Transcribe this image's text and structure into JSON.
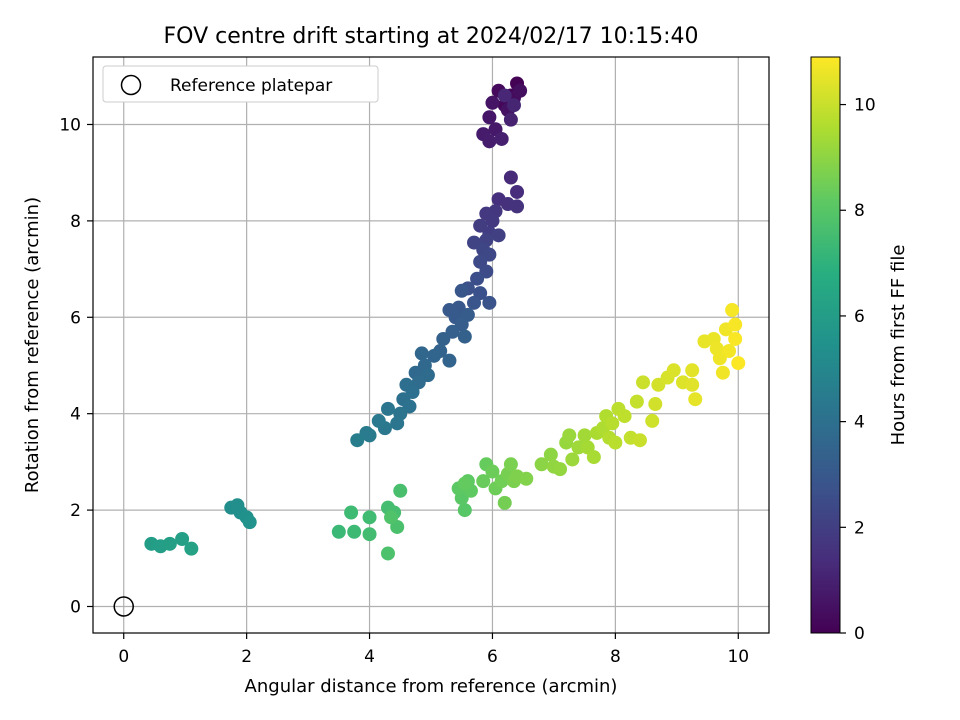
{
  "chart_data": {
    "type": "scatter",
    "title": "FOV centre drift starting at 2024/02/17 10:15:40",
    "xlabel": "Angular distance from reference (arcmin)",
    "ylabel": "Rotation from reference (arcmin)",
    "xlim": [
      -0.5,
      10.5
    ],
    "ylim": [
      -0.55,
      11.4
    ],
    "xticks": [
      0,
      2,
      4,
      6,
      8,
      10
    ],
    "yticks": [
      0,
      2,
      4,
      6,
      8,
      10
    ],
    "grid": true,
    "legend": {
      "location": "top-left",
      "entries": [
        "Reference platepar"
      ]
    },
    "reference_point": {
      "x": 0,
      "y": 0,
      "label": "Reference platepar"
    },
    "colorbar": {
      "label": "Hours from first FF file",
      "colormap": "viridis",
      "range": [
        0,
        10.9
      ],
      "ticks": [
        0,
        2,
        4,
        6,
        8,
        10
      ]
    },
    "series": [
      {
        "points": [
          [
            6.4,
            10.85
          ],
          [
            6.3,
            10.6
          ],
          [
            6.2,
            10.4
          ],
          [
            6.1,
            10.7
          ],
          [
            6.35,
            10.55
          ],
          [
            6.45,
            10.7
          ],
          [
            6.25,
            10.3
          ],
          [
            6.0,
            10.45
          ],
          [
            5.95,
            10.15
          ],
          [
            6.05,
            9.9
          ],
          [
            5.85,
            9.8
          ],
          [
            5.95,
            9.65
          ],
          [
            6.15,
            9.7
          ],
          [
            6.3,
            10.1
          ],
          [
            6.35,
            10.4
          ],
          [
            6.2,
            10.6
          ],
          [
            6.3,
            8.9
          ],
          [
            6.4,
            8.6
          ],
          [
            6.1,
            8.45
          ],
          [
            6.25,
            8.35
          ],
          [
            6.4,
            8.3
          ],
          [
            6.05,
            8.2
          ],
          [
            5.9,
            8.15
          ],
          [
            6.0,
            8.0
          ],
          [
            5.8,
            7.9
          ],
          [
            5.95,
            7.75
          ],
          [
            6.1,
            7.7
          ],
          [
            5.9,
            7.6
          ],
          [
            5.7,
            7.55
          ],
          [
            5.85,
            7.4
          ],
          [
            5.95,
            7.3
          ],
          [
            5.8,
            7.15
          ],
          [
            5.9,
            6.95
          ],
          [
            5.75,
            6.8
          ],
          [
            5.6,
            6.6
          ],
          [
            5.8,
            6.5
          ],
          [
            5.95,
            6.3
          ],
          [
            5.7,
            6.3
          ],
          [
            5.5,
            6.55
          ],
          [
            5.45,
            6.2
          ],
          [
            5.3,
            6.15
          ],
          [
            5.4,
            6.0
          ],
          [
            5.6,
            6.05
          ],
          [
            5.5,
            5.85
          ],
          [
            5.35,
            5.7
          ],
          [
            5.55,
            5.6
          ],
          [
            5.2,
            5.55
          ],
          [
            5.15,
            5.3
          ],
          [
            5.3,
            5.1
          ],
          [
            5.05,
            5.2
          ],
          [
            4.85,
            5.25
          ],
          [
            4.9,
            5.0
          ],
          [
            4.75,
            4.85
          ],
          [
            4.95,
            4.8
          ],
          [
            4.8,
            4.65
          ],
          [
            4.6,
            4.6
          ],
          [
            4.7,
            4.45
          ],
          [
            4.55,
            4.3
          ],
          [
            4.65,
            4.15
          ],
          [
            4.5,
            4.0
          ],
          [
            4.45,
            3.8
          ],
          [
            4.3,
            4.1
          ],
          [
            4.25,
            3.7
          ],
          [
            4.15,
            3.85
          ],
          [
            4.0,
            3.55
          ],
          [
            3.95,
            3.6
          ],
          [
            3.8,
            3.45
          ],
          [
            1.75,
            2.05
          ],
          [
            1.85,
            2.1
          ],
          [
            1.9,
            1.95
          ],
          [
            2.0,
            1.85
          ],
          [
            2.05,
            1.75
          ],
          [
            0.45,
            1.3
          ],
          [
            0.6,
            1.25
          ],
          [
            0.75,
            1.3
          ],
          [
            0.95,
            1.4
          ],
          [
            1.1,
            1.2
          ],
          [
            3.5,
            1.55
          ],
          [
            3.75,
            1.55
          ],
          [
            3.7,
            1.95
          ],
          [
            4.0,
            1.85
          ],
          [
            4.0,
            1.5
          ],
          [
            4.3,
            2.05
          ],
          [
            4.4,
            1.95
          ],
          [
            4.5,
            2.4
          ],
          [
            4.45,
            1.65
          ],
          [
            4.3,
            1.1
          ],
          [
            4.35,
            1.85
          ],
          [
            5.55,
            2.0
          ],
          [
            5.5,
            2.25
          ],
          [
            5.45,
            2.45
          ],
          [
            5.6,
            2.6
          ],
          [
            5.65,
            2.4
          ],
          [
            5.55,
            2.55
          ],
          [
            5.9,
            2.95
          ],
          [
            5.85,
            2.6
          ],
          [
            6.0,
            2.8
          ],
          [
            6.05,
            2.45
          ],
          [
            6.15,
            2.6
          ],
          [
            6.2,
            2.15
          ],
          [
            6.25,
            2.75
          ],
          [
            6.3,
            2.95
          ],
          [
            6.35,
            2.6
          ],
          [
            6.4,
            2.7
          ],
          [
            6.55,
            2.65
          ],
          [
            6.8,
            2.95
          ],
          [
            6.95,
            3.15
          ],
          [
            7.0,
            2.9
          ],
          [
            7.1,
            2.85
          ],
          [
            7.2,
            3.4
          ],
          [
            7.25,
            3.55
          ],
          [
            7.3,
            3.05
          ],
          [
            7.4,
            3.3
          ],
          [
            7.5,
            3.55
          ],
          [
            7.55,
            3.3
          ],
          [
            7.65,
            3.1
          ],
          [
            7.7,
            3.6
          ],
          [
            7.8,
            3.7
          ],
          [
            7.85,
            3.95
          ],
          [
            7.9,
            3.5
          ],
          [
            7.95,
            3.8
          ],
          [
            8.0,
            3.4
          ],
          [
            8.05,
            4.1
          ],
          [
            8.15,
            3.95
          ],
          [
            8.25,
            3.5
          ],
          [
            8.35,
            4.25
          ],
          [
            8.4,
            3.45
          ],
          [
            8.45,
            4.65
          ],
          [
            8.6,
            3.85
          ],
          [
            8.65,
            4.2
          ],
          [
            8.7,
            4.6
          ],
          [
            8.85,
            4.75
          ],
          [
            8.95,
            4.9
          ],
          [
            9.1,
            4.65
          ],
          [
            9.25,
            4.6
          ],
          [
            9.25,
            4.9
          ],
          [
            9.3,
            4.3
          ],
          [
            9.45,
            5.5
          ],
          [
            9.6,
            5.55
          ],
          [
            9.65,
            5.35
          ],
          [
            9.7,
            5.15
          ],
          [
            9.75,
            4.85
          ],
          [
            9.8,
            5.75
          ],
          [
            9.85,
            5.3
          ],
          [
            9.9,
            6.15
          ],
          [
            9.95,
            5.85
          ],
          [
            9.95,
            5.55
          ],
          [
            10.0,
            5.05
          ]
        ],
        "hours": [
          0.05,
          0.12,
          0.2,
          0.28,
          0.35,
          0.42,
          0.5,
          0.58,
          0.65,
          0.72,
          0.8,
          0.88,
          0.95,
          1.02,
          1.1,
          1.18,
          1.3,
          1.38,
          1.45,
          1.52,
          1.6,
          1.68,
          1.75,
          1.82,
          1.9,
          1.97,
          2.05,
          2.12,
          2.2,
          2.27,
          2.35,
          2.42,
          2.5,
          2.57,
          2.64,
          2.7,
          2.77,
          2.84,
          2.9,
          2.96,
          3.02,
          3.08,
          3.14,
          3.2,
          3.26,
          3.32,
          3.38,
          3.44,
          3.5,
          3.55,
          3.6,
          3.66,
          3.72,
          3.78,
          3.84,
          3.9,
          3.96,
          4.02,
          4.08,
          4.14,
          4.2,
          4.26,
          4.32,
          4.38,
          4.44,
          4.5,
          4.56,
          5.3,
          5.35,
          5.4,
          5.45,
          5.5,
          6.0,
          6.05,
          6.1,
          6.15,
          6.2,
          7.3,
          7.35,
          7.4,
          7.45,
          7.5,
          7.55,
          7.6,
          7.65,
          7.7,
          7.75,
          7.8,
          8.0,
          8.05,
          8.1,
          8.15,
          8.2,
          8.25,
          8.3,
          8.35,
          8.4,
          8.45,
          8.5,
          8.55,
          8.6,
          8.65,
          8.7,
          8.75,
          8.8,
          8.95,
          9.0,
          9.05,
          9.1,
          9.15,
          9.2,
          9.25,
          9.3,
          9.35,
          9.4,
          9.45,
          9.5,
          9.55,
          9.6,
          9.65,
          9.7,
          9.75,
          9.8,
          9.85,
          9.9,
          9.95,
          10.0,
          10.05,
          10.1,
          10.15,
          10.2,
          10.25,
          10.3,
          10.35,
          10.4,
          10.45,
          10.5,
          10.55,
          10.6,
          10.62,
          10.65,
          10.68,
          10.7,
          10.73,
          10.76,
          10.8,
          10.84,
          10.88
        ]
      }
    ]
  }
}
